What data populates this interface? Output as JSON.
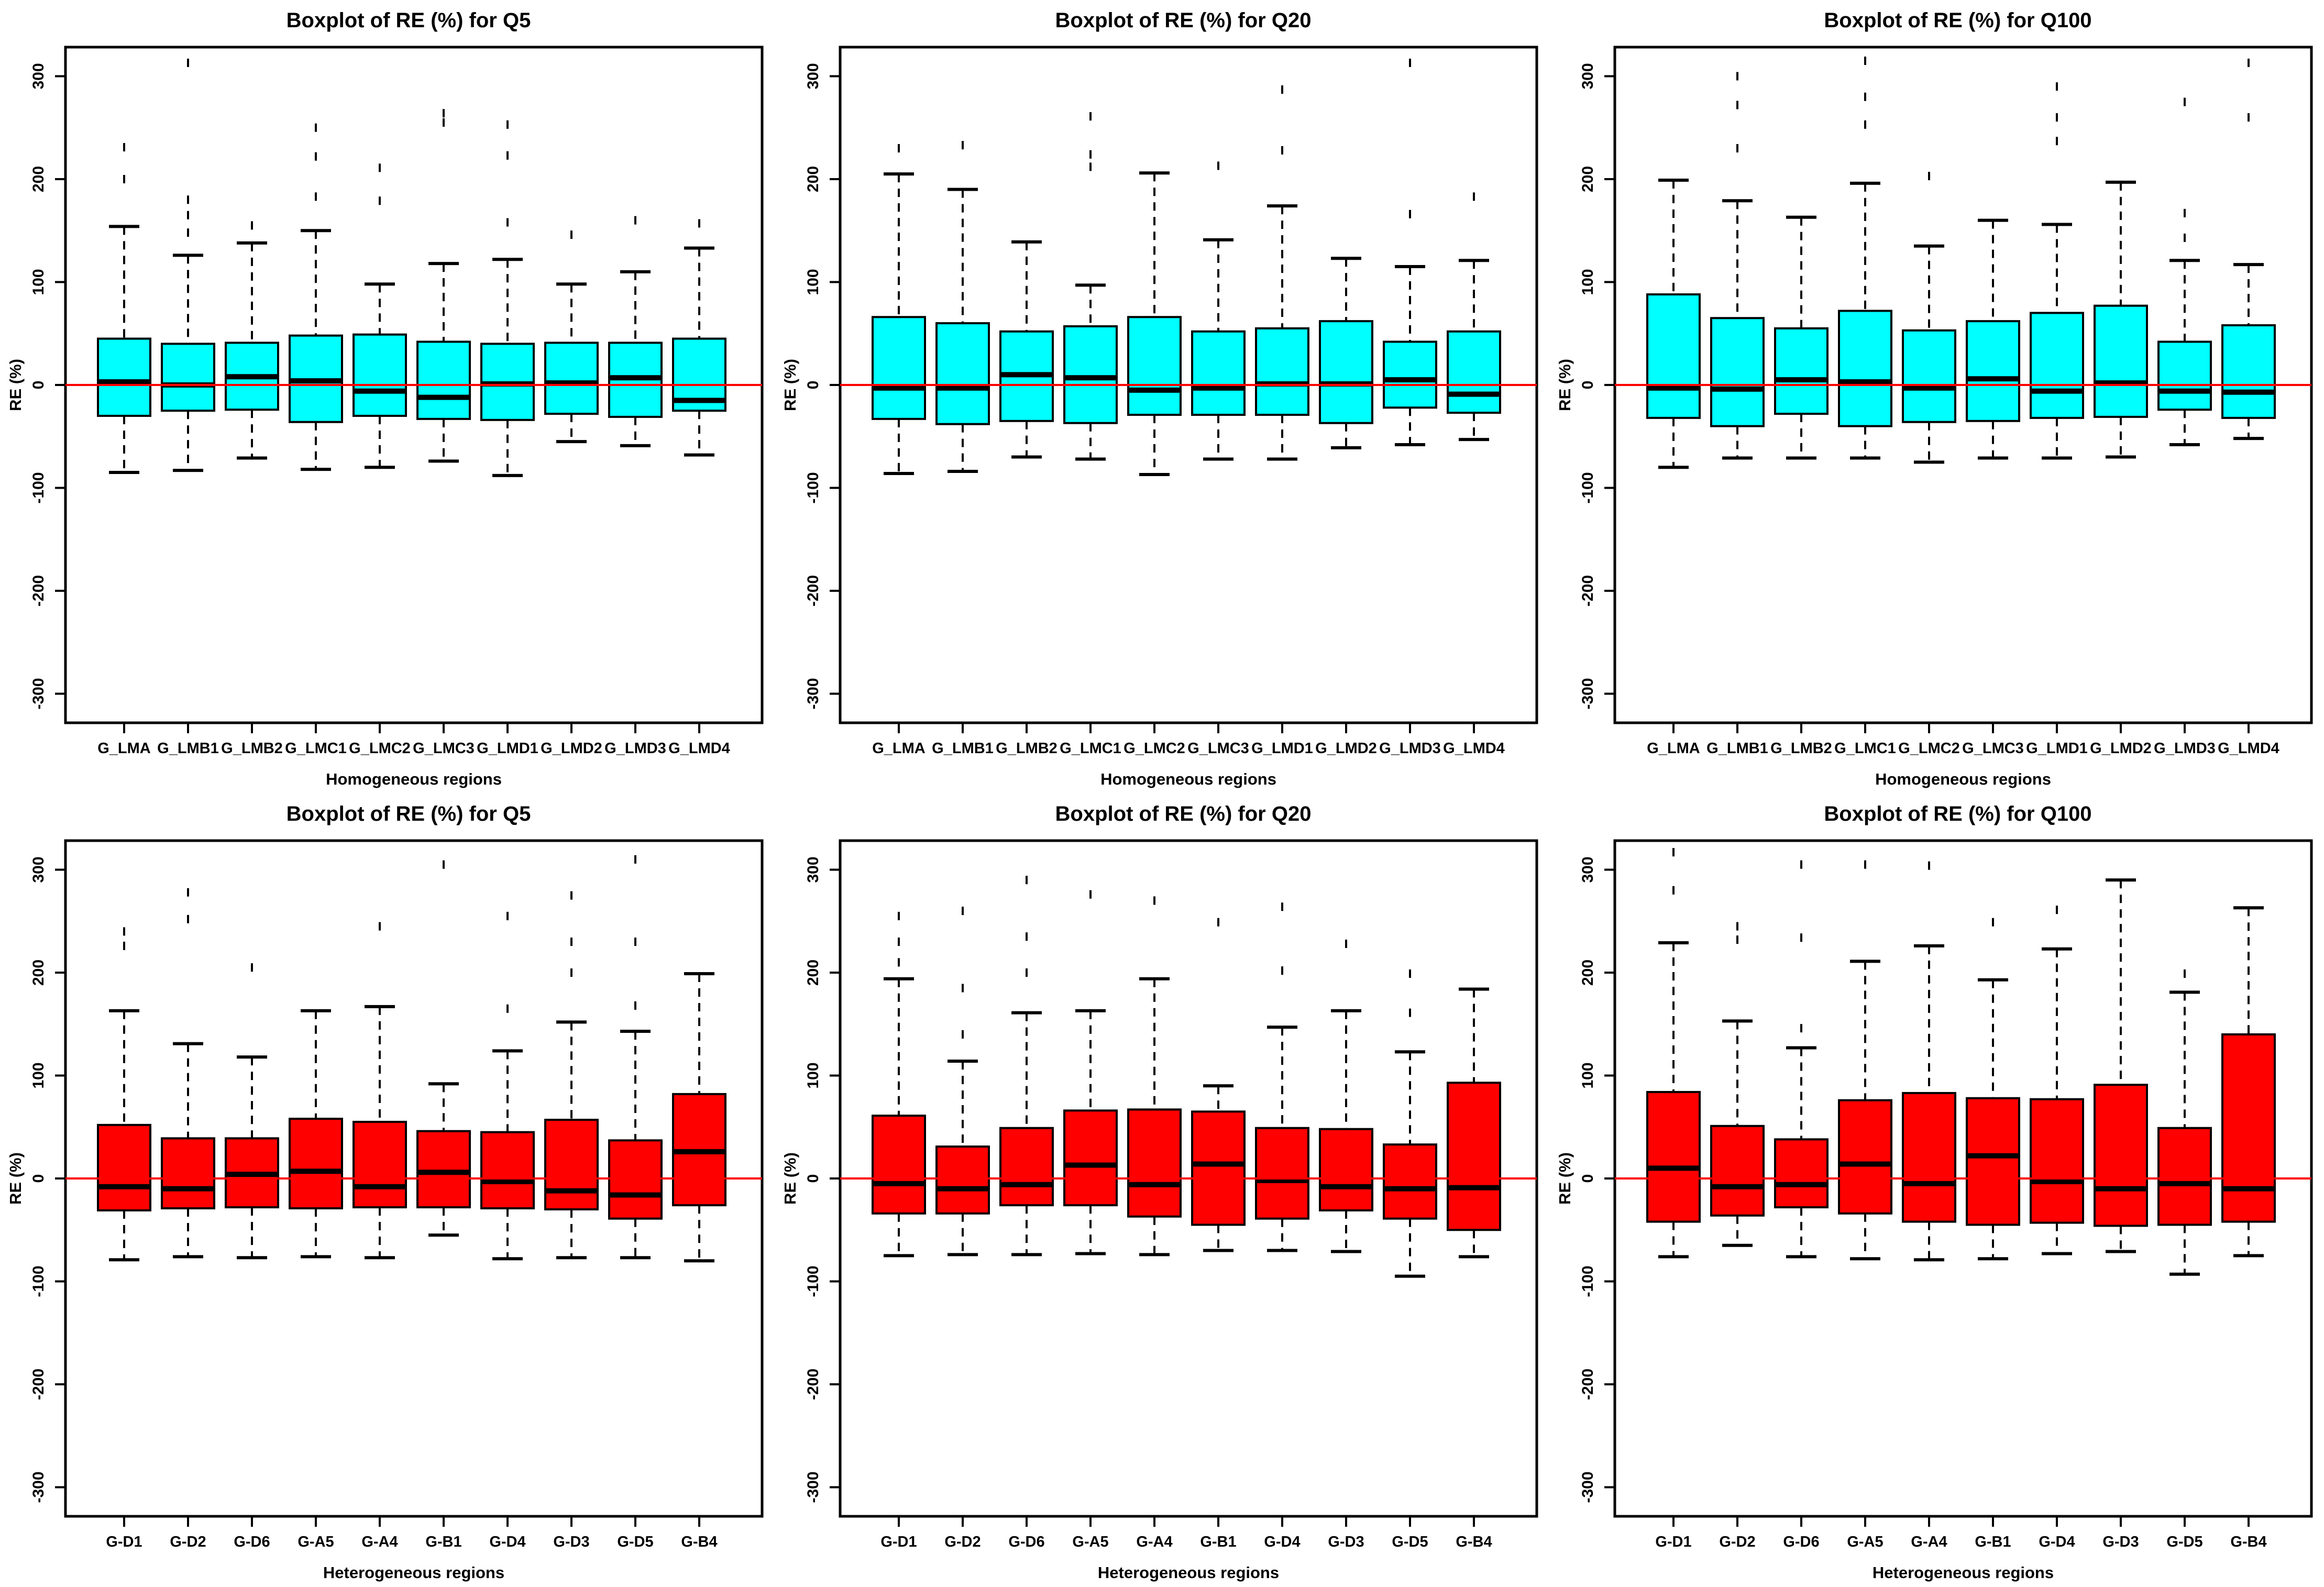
{
  "page": {
    "background": "#ffffff",
    "description": "Six R-style boxplot panels, 2 rows x 3 columns"
  },
  "chart_data": [
    {
      "type": "boxplot",
      "row": 0,
      "col": 0,
      "title": "Boxplot of RE (%) for Q5",
      "xlabel": "Homogeneous regions",
      "ylabel": "RE (%)",
      "box_color": "#00ffff",
      "zero_line_color": "#ff0000",
      "ylim": [
        -330,
        330
      ],
      "yticks": [
        300,
        200,
        100,
        0,
        -100,
        -200,
        -300
      ],
      "grid": false,
      "legend": "none",
      "categories": [
        "G_LMA",
        "G_LMB1",
        "G_LMB2",
        "G_LMC1",
        "G_LMC2",
        "G_LMC3",
        "G_LMD1",
        "G_LMD2",
        "G_LMD3",
        "G_LMD4"
      ],
      "boxes": [
        {
          "label": "G_LMA",
          "low": -85,
          "q1": -30,
          "median": 3,
          "q3": 45,
          "high": 154,
          "outliers": [
            231,
            200
          ]
        },
        {
          "label": "G_LMB1",
          "low": -83,
          "q1": -25,
          "median": 0,
          "q3": 40,
          "high": 126,
          "outliers": [
            313,
            180,
            165,
            148
          ]
        },
        {
          "label": "G_LMB2",
          "low": -71,
          "q1": -24,
          "median": 8,
          "q3": 41,
          "high": 138,
          "outliers": [
            155
          ]
        },
        {
          "label": "G_LMC1",
          "low": -82,
          "q1": -36,
          "median": 4,
          "q3": 48,
          "high": 150,
          "outliers": [
            250,
            222,
            183
          ]
        },
        {
          "label": "G_LMC2",
          "low": -80,
          "q1": -30,
          "median": -6,
          "q3": 49,
          "high": 98,
          "outliers": [
            211,
            179
          ]
        },
        {
          "label": "G_LMC3",
          "low": -74,
          "q1": -33,
          "median": -12,
          "q3": 42,
          "high": 118,
          "outliers": [
            264,
            255
          ]
        },
        {
          "label": "G_LMD1",
          "low": -88,
          "q1": -34,
          "median": 1,
          "q3": 40,
          "high": 122,
          "outliers": [
            253,
            223,
            158
          ]
        },
        {
          "label": "G_LMD2",
          "low": -55,
          "q1": -28,
          "median": 2,
          "q3": 41,
          "high": 98,
          "outliers": [
            146
          ]
        },
        {
          "label": "G_LMD3",
          "low": -59,
          "q1": -31,
          "median": 7,
          "q3": 41,
          "high": 110,
          "outliers": [
            160
          ]
        },
        {
          "label": "G_LMD4",
          "low": -68,
          "q1": -25,
          "median": -15,
          "q3": 45,
          "high": 133,
          "outliers": [
            157
          ]
        }
      ]
    },
    {
      "type": "boxplot",
      "row": 0,
      "col": 1,
      "title": "Boxplot of RE (%) for Q20",
      "xlabel": "Homogeneous regions",
      "ylabel": "RE (%)",
      "box_color": "#00ffff",
      "zero_line_color": "#ff0000",
      "ylim": [
        -330,
        330
      ],
      "yticks": [
        300,
        200,
        100,
        0,
        -100,
        -200,
        -300
      ],
      "grid": false,
      "legend": "none",
      "categories": [
        "G_LMA",
        "G_LMB1",
        "G_LMB2",
        "G_LMC1",
        "G_LMC2",
        "G_LMC3",
        "G_LMD1",
        "G_LMD2",
        "G_LMD3",
        "G_LMD4"
      ],
      "boxes": [
        {
          "label": "G_LMA",
          "low": -86,
          "q1": -33,
          "median": -3,
          "q3": 66,
          "high": 205,
          "outliers": [
            230
          ]
        },
        {
          "label": "G_LMB1",
          "low": -84,
          "q1": -38,
          "median": -3,
          "q3": 60,
          "high": 190,
          "outliers": [
            233
          ]
        },
        {
          "label": "G_LMB2",
          "low": -70,
          "q1": -35,
          "median": 10,
          "q3": 52,
          "high": 139,
          "outliers": []
        },
        {
          "label": "G_LMC1",
          "low": -72,
          "q1": -37,
          "median": 7,
          "q3": 57,
          "high": 97,
          "outliers": [
            261,
            224,
            212
          ]
        },
        {
          "label": "G_LMC2",
          "low": -87,
          "q1": -29,
          "median": -5,
          "q3": 66,
          "high": 206,
          "outliers": []
        },
        {
          "label": "G_LMC3",
          "low": -72,
          "q1": -29,
          "median": -3,
          "q3": 52,
          "high": 141,
          "outliers": [
            213
          ]
        },
        {
          "label": "G_LMD1",
          "low": -72,
          "q1": -29,
          "median": 1,
          "q3": 55,
          "high": 174,
          "outliers": [
            287,
            228
          ]
        },
        {
          "label": "G_LMD2",
          "low": -61,
          "q1": -37,
          "median": 1,
          "q3": 62,
          "high": 123,
          "outliers": []
        },
        {
          "label": "G_LMD3",
          "low": -58,
          "q1": -22,
          "median": 5,
          "q3": 42,
          "high": 115,
          "outliers": [
            313,
            166
          ]
        },
        {
          "label": "G_LMD4",
          "low": -53,
          "q1": -27,
          "median": -9,
          "q3": 52,
          "high": 121,
          "outliers": [
            183
          ]
        }
      ]
    },
    {
      "type": "boxplot",
      "row": 0,
      "col": 2,
      "title": "Boxplot of RE (%) for Q100",
      "xlabel": "Homogeneous regions",
      "ylabel": "RE (%)",
      "box_color": "#00ffff",
      "zero_line_color": "#ff0000",
      "ylim": [
        -330,
        330
      ],
      "yticks": [
        300,
        200,
        100,
        0,
        -100,
        -200,
        -300
      ],
      "grid": false,
      "legend": "none",
      "categories": [
        "G_LMA",
        "G_LMB1",
        "G_LMB2",
        "G_LMC1",
        "G_LMC2",
        "G_LMC3",
        "G_LMD1",
        "G_LMD2",
        "G_LMD3",
        "G_LMD4"
      ],
      "boxes": [
        {
          "label": "G_LMA",
          "low": -80,
          "q1": -32,
          "median": -3,
          "q3": 88,
          "high": 199,
          "outliers": []
        },
        {
          "label": "G_LMB1",
          "low": -71,
          "q1": -40,
          "median": -4,
          "q3": 65,
          "high": 179,
          "outliers": [
            300,
            272,
            230
          ]
        },
        {
          "label": "G_LMB2",
          "low": -71,
          "q1": -28,
          "median": 5,
          "q3": 55,
          "high": 163,
          "outliers": []
        },
        {
          "label": "G_LMC1",
          "low": -71,
          "q1": -40,
          "median": 3,
          "q3": 72,
          "high": 196,
          "outliers": [
            315,
            280,
            253
          ]
        },
        {
          "label": "G_LMC2",
          "low": -75,
          "q1": -36,
          "median": -3,
          "q3": 53,
          "high": 135,
          "outliers": [
            203
          ]
        },
        {
          "label": "G_LMC3",
          "low": -71,
          "q1": -35,
          "median": 6,
          "q3": 62,
          "high": 160,
          "outliers": []
        },
        {
          "label": "G_LMD1",
          "low": -71,
          "q1": -32,
          "median": -6,
          "q3": 70,
          "high": 156,
          "outliers": [
            290,
            260,
            237
          ]
        },
        {
          "label": "G_LMD2",
          "low": -70,
          "q1": -31,
          "median": 2,
          "q3": 77,
          "high": 197,
          "outliers": []
        },
        {
          "label": "G_LMD3",
          "low": -58,
          "q1": -24,
          "median": -6,
          "q3": 42,
          "high": 121,
          "outliers": [
            275,
            167,
            143
          ]
        },
        {
          "label": "G_LMD4",
          "low": -52,
          "q1": -32,
          "median": -7,
          "q3": 58,
          "high": 117,
          "outliers": [
            313,
            260
          ]
        }
      ]
    },
    {
      "type": "boxplot",
      "row": 1,
      "col": 0,
      "title": "Boxplot of RE (%) for Q5",
      "xlabel": "Heterogeneous regions",
      "ylabel": "RE (%)",
      "box_color": "#ff0000",
      "zero_line_color": "#ff0000",
      "ylim": [
        -330,
        330
      ],
      "yticks": [
        300,
        200,
        100,
        0,
        -100,
        -200,
        -300
      ],
      "grid": false,
      "legend": "none",
      "categories": [
        "G-D1",
        "G-D2",
        "G-D6",
        "G-A5",
        "G-A4",
        "G-B1",
        "G-D4",
        "G-D3",
        "G-D5",
        "G-B4"
      ],
      "boxes": [
        {
          "label": "G-D1",
          "low": -79,
          "q1": -31,
          "median": -8,
          "q3": 52,
          "high": 163,
          "outliers": [
            240,
            226
          ]
        },
        {
          "label": "G-D2",
          "low": -76,
          "q1": -29,
          "median": -10,
          "q3": 39,
          "high": 131,
          "outliers": [
            278,
            252
          ]
        },
        {
          "label": "G-D6",
          "low": -77,
          "q1": -28,
          "median": 4,
          "q3": 39,
          "high": 118,
          "outliers": [
            205
          ]
        },
        {
          "label": "G-A5",
          "low": -76,
          "q1": -29,
          "median": 7,
          "q3": 58,
          "high": 163,
          "outliers": []
        },
        {
          "label": "G-A4",
          "low": -77,
          "q1": -28,
          "median": -8,
          "q3": 55,
          "high": 167,
          "outliers": [
            245
          ]
        },
        {
          "label": "G-B1",
          "low": -55,
          "q1": -28,
          "median": 6,
          "q3": 46,
          "high": 92,
          "outliers": [
            305
          ]
        },
        {
          "label": "G-D4",
          "low": -78,
          "q1": -29,
          "median": -3,
          "q3": 45,
          "high": 124,
          "outliers": [
            255,
            165
          ]
        },
        {
          "label": "G-D3",
          "low": -77,
          "q1": -30,
          "median": -12,
          "q3": 57,
          "high": 152,
          "outliers": [
            275,
            230,
            200
          ]
        },
        {
          "label": "G-D5",
          "low": -77,
          "q1": -39,
          "median": -16,
          "q3": 37,
          "high": 143,
          "outliers": [
            310,
            230,
            168
          ]
        },
        {
          "label": "G-B4",
          "low": -80,
          "q1": -26,
          "median": 26,
          "q3": 82,
          "high": 199,
          "outliers": []
        }
      ]
    },
    {
      "type": "boxplot",
      "row": 1,
      "col": 1,
      "title": "Boxplot of RE (%) for Q20",
      "xlabel": "Heterogeneous regions",
      "ylabel": "RE (%)",
      "box_color": "#ff0000",
      "zero_line_color": "#ff0000",
      "ylim": [
        -330,
        330
      ],
      "yticks": [
        300,
        200,
        100,
        0,
        -100,
        -200,
        -300
      ],
      "grid": false,
      "legend": "none",
      "categories": [
        "G-D1",
        "G-D2",
        "G-D6",
        "G-A5",
        "G-A4",
        "G-B1",
        "G-D4",
        "G-D3",
        "G-D5",
        "G-B4"
      ],
      "boxes": [
        {
          "label": "G-D1",
          "low": -75,
          "q1": -34,
          "median": -5,
          "q3": 61,
          "high": 194,
          "outliers": [
            255,
            230,
            210
          ]
        },
        {
          "label": "G-D2",
          "low": -74,
          "q1": -34,
          "median": -10,
          "q3": 31,
          "high": 114,
          "outliers": [
            260,
            185,
            140
          ]
        },
        {
          "label": "G-D6",
          "low": -74,
          "q1": -26,
          "median": -6,
          "q3": 49,
          "high": 161,
          "outliers": [
            290,
            235,
            200
          ]
        },
        {
          "label": "G-A5",
          "low": -73,
          "q1": -26,
          "median": 13,
          "q3": 66,
          "high": 163,
          "outliers": [
            276
          ]
        },
        {
          "label": "G-A4",
          "low": -74,
          "q1": -37,
          "median": -6,
          "q3": 67,
          "high": 194,
          "outliers": [
            270
          ]
        },
        {
          "label": "G-B1",
          "low": -70,
          "q1": -45,
          "median": 14,
          "q3": 65,
          "high": 90,
          "outliers": [
            249
          ]
        },
        {
          "label": "G-D4",
          "low": -70,
          "q1": -39,
          "median": -2,
          "q3": 49,
          "high": 147,
          "outliers": [
            264,
            202
          ]
        },
        {
          "label": "G-D3",
          "low": -71,
          "q1": -31,
          "median": -8,
          "q3": 48,
          "high": 163,
          "outliers": [
            228
          ]
        },
        {
          "label": "G-D5",
          "low": -95,
          "q1": -39,
          "median": -10,
          "q3": 33,
          "high": 123,
          "outliers": [
            199,
            161
          ]
        },
        {
          "label": "G-B4",
          "low": -76,
          "q1": -50,
          "median": -9,
          "q3": 93,
          "high": 184,
          "outliers": []
        }
      ]
    },
    {
      "type": "boxplot",
      "row": 1,
      "col": 2,
      "title": "Boxplot of RE (%) for Q100",
      "xlabel": "Heterogeneous regions",
      "ylabel": "RE (%)",
      "box_color": "#ff0000",
      "zero_line_color": "#ff0000",
      "ylim": [
        -330,
        330
      ],
      "yticks": [
        300,
        200,
        100,
        0,
        -100,
        -200,
        -300
      ],
      "grid": false,
      "legend": "none",
      "categories": [
        "G-D1",
        "G-D2",
        "G-D6",
        "G-A5",
        "G-A4",
        "G-B1",
        "G-D4",
        "G-D3",
        "G-D5",
        "G-B4"
      ],
      "boxes": [
        {
          "label": "G-D1",
          "low": -76,
          "q1": -42,
          "median": 10,
          "q3": 84,
          "high": 229,
          "outliers": [
            317,
            280
          ]
        },
        {
          "label": "G-D2",
          "low": -65,
          "q1": -36,
          "median": -8,
          "q3": 51,
          "high": 153,
          "outliers": [
            245,
            232
          ]
        },
        {
          "label": "G-D6",
          "low": -76,
          "q1": -28,
          "median": -6,
          "q3": 38,
          "high": 127,
          "outliers": [
            305,
            234,
            146
          ]
        },
        {
          "label": "G-A5",
          "low": -78,
          "q1": -34,
          "median": 14,
          "q3": 76,
          "high": 211,
          "outliers": [
            305
          ]
        },
        {
          "label": "G-A4",
          "low": -79,
          "q1": -42,
          "median": -5,
          "q3": 83,
          "high": 226,
          "outliers": [
            304
          ]
        },
        {
          "label": "G-B1",
          "low": -78,
          "q1": -45,
          "median": 22,
          "q3": 78,
          "high": 193,
          "outliers": [
            249
          ]
        },
        {
          "label": "G-D4",
          "low": -73,
          "q1": -43,
          "median": -3,
          "q3": 77,
          "high": 223,
          "outliers": [
            261
          ]
        },
        {
          "label": "G-D3",
          "low": -71,
          "q1": -46,
          "median": -10,
          "q3": 91,
          "high": 290,
          "outliers": []
        },
        {
          "label": "G-D5",
          "low": -93,
          "q1": -45,
          "median": -5,
          "q3": 49,
          "high": 181,
          "outliers": [
            199
          ]
        },
        {
          "label": "G-B4",
          "low": -75,
          "q1": -42,
          "median": -10,
          "q3": 140,
          "high": 263,
          "outliers": []
        }
      ]
    }
  ]
}
